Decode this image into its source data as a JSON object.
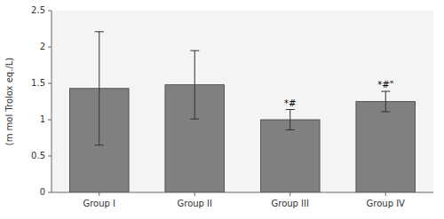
{
  "chart_data": {
    "type": "bar",
    "categories": [
      "Group I",
      "Group II",
      "Group III",
      "Group IV"
    ],
    "values": [
      1.43,
      1.48,
      1.0,
      1.25
    ],
    "errors": [
      0.78,
      0.47,
      0.14,
      0.14
    ],
    "annotations": [
      null,
      null,
      "*#",
      "*#\""
    ],
    "color": "#808080",
    "ylabel": "(m mol Trolox eq./L)",
    "ylim": [
      0,
      2.5
    ],
    "yticks": [
      0,
      0.5,
      1,
      1.5,
      2,
      2.5
    ],
    "grid": false
  }
}
